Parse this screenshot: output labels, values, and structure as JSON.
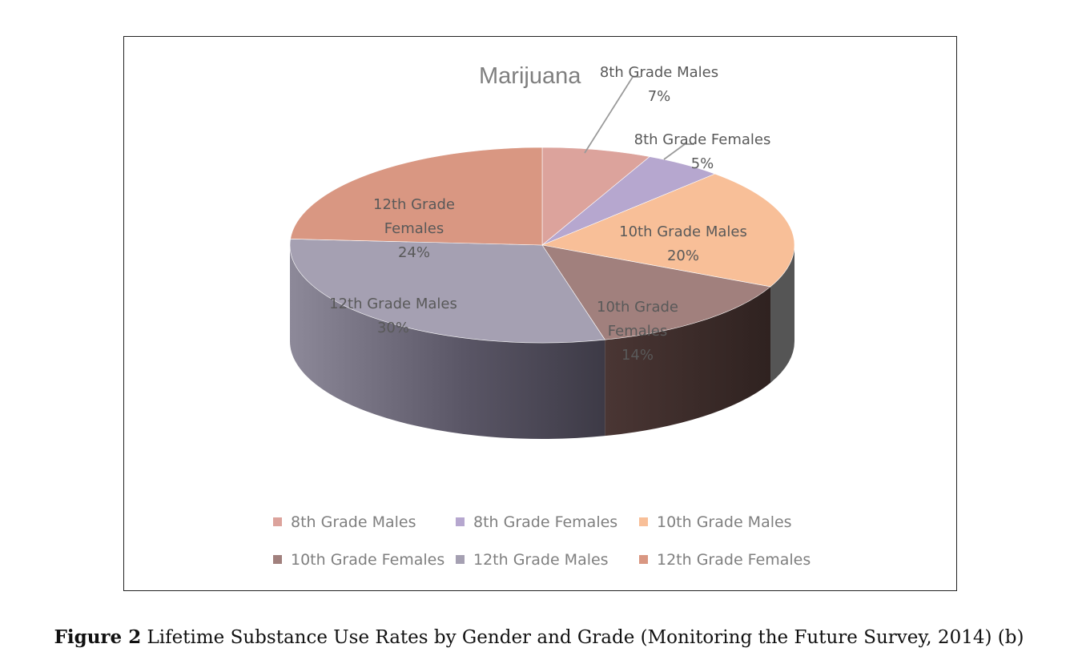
{
  "chart_data": {
    "type": "pie",
    "title": "Marijuana",
    "categories": [
      "8th Grade Males",
      "8th Grade Females",
      "10th Grade Males",
      "10th Grade Females",
      "12th Grade Males",
      "12th Grade Females"
    ],
    "values": [
      7,
      5,
      20,
      14,
      30,
      24
    ],
    "value_labels": [
      "7%",
      "5%",
      "20%",
      "14%",
      "30%",
      "24%"
    ],
    "colors": [
      "#dca39c",
      "#b6a7cf",
      "#f8bf98",
      "#a1807d",
      "#a5a0b2",
      "#d99782"
    ],
    "legend_position": "bottom",
    "style": "3d"
  },
  "caption": {
    "label": "Figure 2",
    "text": "Lifetime Substance Use Rates by Gender and Grade (Monitoring the Future Survey, 2014) (b)"
  }
}
